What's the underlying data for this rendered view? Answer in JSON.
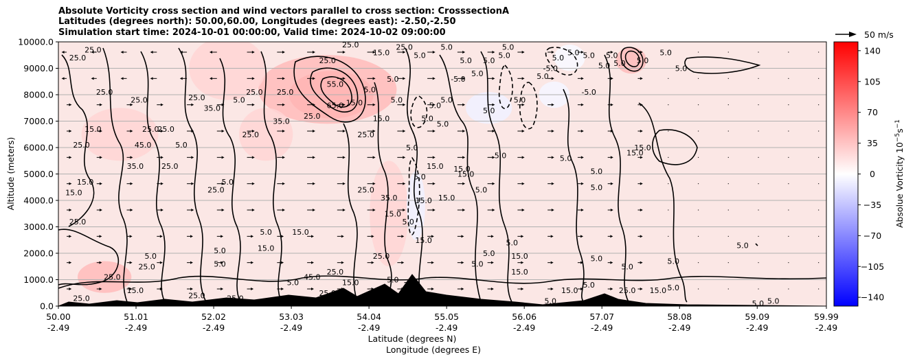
{
  "chart_data": {
    "type": "contour",
    "title_lines": [
      "Absolute Vorticity cross section and wind vectors parallel to cross section: CrosssectionA",
      "Latitudes (degrees north): 50.00,60.00, Longitudes (degrees east): -2.50,-2.50",
      "Simulation start time: 2024-10-01 00:00:00, Valid time: 2024-10-02 09:00:00"
    ],
    "xlabel_lat": "Latitude (degrees N)",
    "xlabel_lon": "Longitude (degrees E)",
    "ylabel": "Altitude (meters)",
    "x_lat_ticks": [
      "50.00",
      "51.01",
      "52.02",
      "53.03",
      "54.04",
      "55.05",
      "56.06",
      "57.07",
      "58.08",
      "59.09",
      "59.99"
    ],
    "x_lon_ticks": [
      "-2.49",
      "-2.49",
      "-2.49",
      "-2.49",
      "-2.49",
      "-2.49",
      "-2.49",
      "-2.49",
      "-2.49",
      "-2.49",
      "-2.49"
    ],
    "x_tick_values": [
      50.0,
      51.01,
      52.02,
      53.03,
      54.04,
      55.05,
      56.06,
      57.07,
      58.08,
      59.09,
      59.99
    ],
    "xlim": [
      50.0,
      59.99
    ],
    "y_ticks": [
      0,
      1000,
      2000,
      3000,
      4000,
      5000,
      6000,
      7000,
      8000,
      9000,
      10000
    ],
    "y_tick_labels": [
      "0.0",
      "1000.0",
      "2000.0",
      "3000.0",
      "4000.0",
      "5000.0",
      "6000.0",
      "7000.0",
      "8000.0",
      "9000.0",
      "10000.0"
    ],
    "ylim": [
      0,
      10000
    ],
    "grid": "horizontal",
    "colorbar": {
      "label": "Absolue Vorticity 10",
      "label_exp": "−5",
      "label_unit": "s",
      "label_unit_exp": "−1",
      "ticks": [
        140,
        105,
        70,
        35,
        0,
        -35,
        -70,
        -105,
        -140
      ],
      "tick_labels": [
        "140",
        "105",
        "70",
        "35",
        "0",
        "−35",
        "−70",
        "−105",
        "−140"
      ],
      "range": [
        -150,
        150
      ],
      "colormap": "bwr",
      "min_color": "#0000ff",
      "mid_color": "#ffffff",
      "max_color": "#ff0000"
    },
    "quiver_key": {
      "label": "50 m/s",
      "speed": 50
    },
    "contour_levels_labeled": [
      "5.0",
      "-5.0",
      "15.0",
      "25.0",
      "35.0",
      "45.0",
      "55.0",
      "65.0"
    ],
    "contour_labels": [
      {
        "lat": 50.25,
        "alt": 9400,
        "text": "25.0"
      },
      {
        "lat": 50.45,
        "alt": 9700,
        "text": "25.0"
      },
      {
        "lat": 50.6,
        "alt": 8100,
        "text": "25.0"
      },
      {
        "lat": 50.3,
        "alt": 6100,
        "text": "25.0"
      },
      {
        "lat": 50.45,
        "alt": 6700,
        "text": "15.0"
      },
      {
        "lat": 50.2,
        "alt": 4300,
        "text": "15.0"
      },
      {
        "lat": 50.35,
        "alt": 4700,
        "text": "15.0"
      },
      {
        "lat": 50.25,
        "alt": 3200,
        "text": "25.0"
      },
      {
        "lat": 50.7,
        "alt": 1100,
        "text": "25.0"
      },
      {
        "lat": 50.3,
        "alt": 300,
        "text": "25.0"
      },
      {
        "lat": 51.05,
        "alt": 7800,
        "text": "25.0"
      },
      {
        "lat": 51.2,
        "alt": 6700,
        "text": "25.0"
      },
      {
        "lat": 51.1,
        "alt": 6100,
        "text": "45.0"
      },
      {
        "lat": 51.0,
        "alt": 5300,
        "text": "35.0"
      },
      {
        "lat": 51.45,
        "alt": 5300,
        "text": "25.0"
      },
      {
        "lat": 51.4,
        "alt": 6700,
        "text": "25.0"
      },
      {
        "lat": 51.6,
        "alt": 6100,
        "text": "5.0"
      },
      {
        "lat": 51.2,
        "alt": 1900,
        "text": "5.0"
      },
      {
        "lat": 51.15,
        "alt": 1500,
        "text": "25.0"
      },
      {
        "lat": 51.0,
        "alt": 600,
        "text": "15.0"
      },
      {
        "lat": 52.0,
        "alt": 7500,
        "text": "35.0"
      },
      {
        "lat": 51.8,
        "alt": 7900,
        "text": "25.0"
      },
      {
        "lat": 52.1,
        "alt": 2100,
        "text": "5.0"
      },
      {
        "lat": 52.1,
        "alt": 1600,
        "text": "5.0"
      },
      {
        "lat": 52.35,
        "alt": 7800,
        "text": "5.0"
      },
      {
        "lat": 52.55,
        "alt": 8100,
        "text": "25.0"
      },
      {
        "lat": 52.5,
        "alt": 6500,
        "text": "25.0"
      },
      {
        "lat": 52.05,
        "alt": 4400,
        "text": "25.0"
      },
      {
        "lat": 52.2,
        "alt": 4700,
        "text": "5.0"
      },
      {
        "lat": 52.7,
        "alt": 2800,
        "text": "5.0"
      },
      {
        "lat": 52.7,
        "alt": 2200,
        "text": "15.0"
      },
      {
        "lat": 52.9,
        "alt": 7000,
        "text": "35.0"
      },
      {
        "lat": 52.95,
        "alt": 8100,
        "text": "25.0"
      },
      {
        "lat": 53.3,
        "alt": 7200,
        "text": "25.0"
      },
      {
        "lat": 53.15,
        "alt": 2800,
        "text": "15.0"
      },
      {
        "lat": 53.6,
        "alt": 8400,
        "text": "55.0"
      },
      {
        "lat": 53.6,
        "alt": 7600,
        "text": "65.0"
      },
      {
        "lat": 53.85,
        "alt": 7700,
        "text": "15.0"
      },
      {
        "lat": 53.5,
        "alt": 9300,
        "text": "25.0"
      },
      {
        "lat": 54.2,
        "alt": 9600,
        "text": "15.0"
      },
      {
        "lat": 54.05,
        "alt": 8200,
        "text": "5.0"
      },
      {
        "lat": 54.35,
        "alt": 8600,
        "text": "5.0"
      },
      {
        "lat": 54.4,
        "alt": 7800,
        "text": "5.0"
      },
      {
        "lat": 53.8,
        "alt": 9900,
        "text": "25.0"
      },
      {
        "lat": 54.5,
        "alt": 9800,
        "text": "25.0"
      },
      {
        "lat": 54.2,
        "alt": 7100,
        "text": "15.0"
      },
      {
        "lat": 54.0,
        "alt": 6500,
        "text": "25.0"
      },
      {
        "lat": 54.6,
        "alt": 6000,
        "text": "5.0"
      },
      {
        "lat": 54.0,
        "alt": 4400,
        "text": "25.0"
      },
      {
        "lat": 54.3,
        "alt": 4100,
        "text": "35.0"
      },
      {
        "lat": 54.35,
        "alt": 3500,
        "text": "15.0"
      },
      {
        "lat": 54.2,
        "alt": 1900,
        "text": "25.0"
      },
      {
        "lat": 54.55,
        "alt": 3200,
        "text": "5.0"
      },
      {
        "lat": 54.75,
        "alt": 2500,
        "text": "15.0"
      },
      {
        "lat": 54.75,
        "alt": 4000,
        "text": "15.0"
      },
      {
        "lat": 54.7,
        "alt": 4900,
        "text": "5.0"
      },
      {
        "lat": 54.9,
        "alt": 5300,
        "text": "15.0"
      },
      {
        "lat": 55.25,
        "alt": 5200,
        "text": "15.0"
      },
      {
        "lat": 54.9,
        "alt": 7600,
        "text": "5.0"
      },
      {
        "lat": 54.8,
        "alt": 7100,
        "text": "5.0"
      },
      {
        "lat": 55.05,
        "alt": 7800,
        "text": "5.0"
      },
      {
        "lat": 54.7,
        "alt": 9500,
        "text": "5.0"
      },
      {
        "lat": 55.05,
        "alt": 9800,
        "text": "5.0"
      },
      {
        "lat": 55.3,
        "alt": 9300,
        "text": "5.0"
      },
      {
        "lat": 55.2,
        "alt": 8600,
        "text": "-5.0"
      },
      {
        "lat": 55.45,
        "alt": 8800,
        "text": "5.0"
      },
      {
        "lat": 55.6,
        "alt": 9300,
        "text": "5.0"
      },
      {
        "lat": 55.8,
        "alt": 9500,
        "text": "5.0"
      },
      {
        "lat": 55.85,
        "alt": 9800,
        "text": "5.0"
      },
      {
        "lat": 55.0,
        "alt": 6900,
        "text": "5.0"
      },
      {
        "lat": 55.6,
        "alt": 7400,
        "text": "5.0"
      },
      {
        "lat": 55.3,
        "alt": 5000,
        "text": "15.0"
      },
      {
        "lat": 55.05,
        "alt": 4100,
        "text": "15.0"
      },
      {
        "lat": 55.5,
        "alt": 4400,
        "text": "5.0"
      },
      {
        "lat": 55.6,
        "alt": 2000,
        "text": "5.0"
      },
      {
        "lat": 55.9,
        "alt": 2400,
        "text": "5.0"
      },
      {
        "lat": 55.45,
        "alt": 1600,
        "text": "5.0"
      },
      {
        "lat": 56.0,
        "alt": 1900,
        "text": "15.0"
      },
      {
        "lat": 56.0,
        "alt": 1300,
        "text": "15.0"
      },
      {
        "lat": 55.75,
        "alt": 5700,
        "text": "5.0"
      },
      {
        "lat": 56.0,
        "alt": 7800,
        "text": "5.0"
      },
      {
        "lat": 56.4,
        "alt": 9000,
        "text": "-5.0"
      },
      {
        "lat": 56.3,
        "alt": 8700,
        "text": "5.0"
      },
      {
        "lat": 56.5,
        "alt": 9400,
        "text": "5.0"
      },
      {
        "lat": 56.7,
        "alt": 9600,
        "text": "5.0"
      },
      {
        "lat": 56.9,
        "alt": 9500,
        "text": "5.0"
      },
      {
        "lat": 57.1,
        "alt": 9100,
        "text": "5.0"
      },
      {
        "lat": 57.2,
        "alt": 9500,
        "text": "5.0"
      },
      {
        "lat": 57.3,
        "alt": 9200,
        "text": "5.0"
      },
      {
        "lat": 56.9,
        "alt": 8100,
        "text": "-5.0"
      },
      {
        "lat": 57.9,
        "alt": 9600,
        "text": "5.0"
      },
      {
        "lat": 57.6,
        "alt": 9300,
        "text": "5.0"
      },
      {
        "lat": 58.1,
        "alt": 9000,
        "text": "5.0"
      },
      {
        "lat": 57.6,
        "alt": 6000,
        "text": "15.0"
      },
      {
        "lat": 57.5,
        "alt": 5800,
        "text": "15.0"
      },
      {
        "lat": 56.6,
        "alt": 5600,
        "text": "5.0"
      },
      {
        "lat": 57.0,
        "alt": 5100,
        "text": "5.0"
      },
      {
        "lat": 57.0,
        "alt": 4500,
        "text": "5.0"
      },
      {
        "lat": 57.0,
        "alt": 1800,
        "text": "5.0"
      },
      {
        "lat": 57.4,
        "alt": 1500,
        "text": "5.0"
      },
      {
        "lat": 57.8,
        "alt": 600,
        "text": "15.0"
      },
      {
        "lat": 58.0,
        "alt": 700,
        "text": "5.0"
      },
      {
        "lat": 57.4,
        "alt": 600,
        "text": "25.0"
      },
      {
        "lat": 56.9,
        "alt": 800,
        "text": "5.0"
      },
      {
        "lat": 56.65,
        "alt": 600,
        "text": "15.0"
      },
      {
        "lat": 56.4,
        "alt": 200,
        "text": "5.0"
      },
      {
        "lat": 58.9,
        "alt": 2300,
        "text": "5.0"
      },
      {
        "lat": 59.3,
        "alt": 200,
        "text": "5.0"
      },
      {
        "lat": 59.1,
        "alt": 100,
        "text": "5.0"
      },
      {
        "lat": 58.0,
        "alt": 1700,
        "text": "5.0"
      },
      {
        "lat": 55.35,
        "alt": 100,
        "text": "5.0"
      },
      {
        "lat": 53.5,
        "alt": 500,
        "text": "25.0"
      },
      {
        "lat": 52.3,
        "alt": 300,
        "text": "25.0"
      },
      {
        "lat": 51.8,
        "alt": 400,
        "text": "25.0"
      },
      {
        "lat": 53.05,
        "alt": 900,
        "text": "5.0"
      },
      {
        "lat": 53.3,
        "alt": 1100,
        "text": "45.0"
      },
      {
        "lat": 53.6,
        "alt": 1300,
        "text": "25.0"
      },
      {
        "lat": 53.8,
        "alt": 900,
        "text": "15.0"
      },
      {
        "lat": 54.35,
        "alt": 1000,
        "text": "5.0"
      },
      {
        "lat": 54.6,
        "alt": 800,
        "text": "25.0"
      }
    ],
    "vorticity_blobs": [
      {
        "lat": 53.55,
        "alt": 8000,
        "value": 65,
        "rlat": 0.55,
        "ralt": 900
      },
      {
        "lat": 53.5,
        "alt": 8200,
        "value": 40,
        "rlat": 0.9,
        "ralt": 1300
      },
      {
        "lat": 50.6,
        "alt": 1100,
        "value": 40,
        "rlat": 0.35,
        "ralt": 600
      },
      {
        "lat": 57.45,
        "alt": 9300,
        "value": 40,
        "rlat": 0.2,
        "ralt": 500
      },
      {
        "lat": 52.2,
        "alt": 9000,
        "value": 25,
        "rlat": 0.5,
        "ralt": 1200
      },
      {
        "lat": 50.8,
        "alt": 6500,
        "value": 25,
        "rlat": 0.5,
        "ralt": 1000
      },
      {
        "lat": 54.3,
        "alt": 3500,
        "value": 25,
        "rlat": 0.25,
        "ralt": 2000
      },
      {
        "lat": 52.7,
        "alt": 6500,
        "value": 25,
        "rlat": 0.35,
        "ralt": 1000
      },
      {
        "lat": 55.6,
        "alt": 7500,
        "value": -8,
        "rlat": 0.3,
        "ralt": 600
      },
      {
        "lat": 56.45,
        "alt": 8000,
        "value": -6,
        "rlat": 0.2,
        "ralt": 500
      },
      {
        "lat": 56.65,
        "alt": 9400,
        "value": -4,
        "rlat": 0.2,
        "ralt": 500
      },
      {
        "lat": 54.65,
        "alt": 3800,
        "value": -8,
        "rlat": 0.12,
        "ralt": 1300
      }
    ]
  }
}
